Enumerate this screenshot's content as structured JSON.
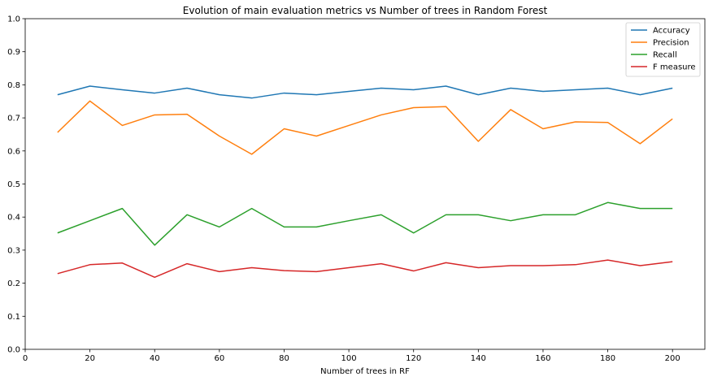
{
  "chart_data": {
    "type": "line",
    "title": "Evolution of main evaluation metrics vs Number of trees in Random Forest",
    "xlabel": "Number of trees in RF",
    "ylabel": "",
    "xlim": [
      0,
      210
    ],
    "ylim": [
      0,
      1.0
    ],
    "xticks": [
      0,
      20,
      40,
      60,
      80,
      100,
      120,
      140,
      160,
      180,
      200
    ],
    "yticks": [
      0.0,
      0.1,
      0.2,
      0.3,
      0.4,
      0.5,
      0.6,
      0.7,
      0.8,
      0.9,
      1.0
    ],
    "grid": false,
    "legend_position": "top-right",
    "x": [
      10,
      20,
      30,
      40,
      50,
      60,
      70,
      80,
      90,
      100,
      110,
      120,
      130,
      140,
      150,
      160,
      170,
      180,
      190,
      200
    ],
    "series": [
      {
        "name": "Accuracy",
        "color": "#1f77b4",
        "values": [
          0.77,
          0.796,
          0.785,
          0.775,
          0.79,
          0.77,
          0.76,
          0.775,
          0.77,
          0.78,
          0.79,
          0.785,
          0.796,
          0.77,
          0.79,
          0.78,
          0.785,
          0.79,
          0.77,
          0.79
        ]
      },
      {
        "name": "Precision",
        "color": "#ff7f0e",
        "values": [
          0.656,
          0.751,
          0.677,
          0.709,
          0.711,
          0.645,
          0.59,
          0.667,
          0.645,
          0.677,
          0.709,
          0.731,
          0.734,
          0.629,
          0.725,
          0.667,
          0.688,
          0.686,
          0.622,
          0.697
        ]
      },
      {
        "name": "Recall",
        "color": "#2ca02c",
        "values": [
          0.352,
          0.389,
          0.426,
          0.315,
          0.407,
          0.37,
          0.426,
          0.37,
          0.37,
          0.389,
          0.407,
          0.352,
          0.407,
          0.407,
          0.389,
          0.407,
          0.407,
          0.444,
          0.426,
          0.426
        ]
      },
      {
        "name": "F measure",
        "color": "#d62728",
        "values": [
          0.229,
          0.256,
          0.261,
          0.218,
          0.259,
          0.235,
          0.247,
          0.238,
          0.235,
          0.247,
          0.259,
          0.237,
          0.262,
          0.247,
          0.253,
          0.253,
          0.256,
          0.27,
          0.253,
          0.265
        ]
      }
    ]
  }
}
